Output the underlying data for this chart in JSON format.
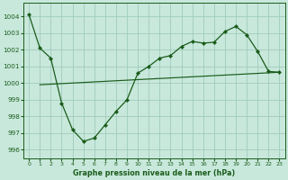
{
  "xlabel": "Graphe pression niveau de la mer (hPa)",
  "background_color": "#c8e8dc",
  "grid_color": "#a0ccbb",
  "line_color": "#1a5c1a",
  "line1_x": [
    0,
    1,
    2,
    3,
    4,
    5,
    6,
    7,
    8,
    9,
    10,
    11,
    12,
    13,
    14,
    15,
    16,
    17,
    18,
    19,
    20,
    21,
    22,
    23
  ],
  "line1_y": [
    1004.1,
    1002.1,
    1001.5,
    998.8,
    997.2,
    996.5,
    996.7,
    997.5,
    998.3,
    999.0,
    1000.6,
    1001.0,
    1001.5,
    1001.65,
    1002.2,
    1002.5,
    1002.4,
    1002.45,
    1003.1,
    1003.4,
    1002.9,
    1001.9,
    1000.7,
    1000.65
  ],
  "line2_x": [
    1,
    23
  ],
  "line2_y": [
    999.9,
    1000.65
  ],
  "ylim": [
    995.5,
    1004.8
  ],
  "xlim": [
    -0.5,
    23.5
  ],
  "yticks": [
    996,
    997,
    998,
    999,
    1000,
    1001,
    1002,
    1003,
    1004
  ],
  "xticks": [
    0,
    1,
    2,
    3,
    4,
    5,
    6,
    7,
    8,
    9,
    10,
    11,
    12,
    13,
    14,
    15,
    16,
    17,
    18,
    19,
    20,
    21,
    22,
    23
  ]
}
